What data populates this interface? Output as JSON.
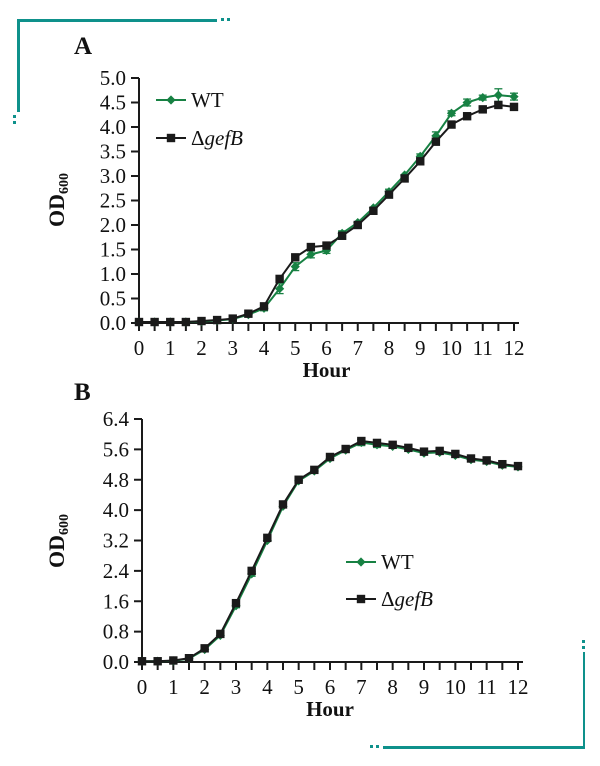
{
  "decorations": {
    "color": "#0e918b",
    "top_left_bracket": "corner bracket with dotted ends",
    "bottom_right_bracket": "corner bracket with dotted ends"
  },
  "chart_data": [
    {
      "type": "line",
      "panel_label": "A",
      "xlabel": "Hour",
      "ylabel": {
        "main": "OD",
        "sub": "600"
      },
      "xlim": [
        0,
        12
      ],
      "ylim": [
        0,
        5.0
      ],
      "x_minor_step": 0.5,
      "x_tick_labels": [
        "0",
        "1",
        "2",
        "3",
        "4",
        "5",
        "6",
        "7",
        "8",
        "9",
        "10",
        "11",
        "12"
      ],
      "y_ticks": [
        0,
        0.5,
        1.0,
        1.5,
        2.0,
        2.5,
        3.0,
        3.5,
        4.0,
        4.5,
        5.0
      ],
      "y_tick_labels": [
        "0.0",
        "0.5",
        "1.0",
        "1.5",
        "2.0",
        "2.5",
        "3.0",
        "3.5",
        "4.0",
        "4.5",
        "5.0"
      ],
      "grid": false,
      "legend_position": "inside-top-left",
      "x": [
        0,
        0.5,
        1,
        1.5,
        2,
        2.5,
        3,
        3.5,
        4,
        4.5,
        5,
        5.5,
        6,
        6.5,
        7,
        7.5,
        8,
        8.5,
        9,
        9.5,
        10,
        10.5,
        11,
        11.5,
        12
      ],
      "series": [
        {
          "name": "WT",
          "key": "wt",
          "color": "#178143",
          "marker": "diamond",
          "values": [
            0.02,
            0.02,
            0.02,
            0.02,
            0.03,
            0.05,
            0.08,
            0.17,
            0.3,
            0.7,
            1.15,
            1.4,
            1.48,
            1.83,
            2.05,
            2.35,
            2.68,
            3.02,
            3.4,
            3.82,
            4.28,
            4.5,
            4.6,
            4.65,
            4.62
          ],
          "err": [
            0,
            0,
            0,
            0,
            0,
            0,
            0,
            0.04,
            0.05,
            0.1,
            0.08,
            0.07,
            0.06,
            0.05,
            0,
            0,
            0.05,
            0,
            0.05,
            0.08,
            0.05,
            0.07,
            0.05,
            0.13,
            0.07
          ]
        },
        {
          "name": "ΔgefB",
          "key": "gefb-mutant",
          "color": "#1a1a1a",
          "marker": "square",
          "values": [
            0.02,
            0.02,
            0.02,
            0.02,
            0.04,
            0.06,
            0.09,
            0.19,
            0.34,
            0.9,
            1.34,
            1.55,
            1.58,
            1.78,
            2.0,
            2.29,
            2.62,
            2.95,
            3.3,
            3.7,
            4.05,
            4.22,
            4.36,
            4.45,
            4.41
          ],
          "err": [
            0,
            0,
            0,
            0,
            0,
            0,
            0,
            0,
            0,
            0,
            0,
            0,
            0,
            0,
            0,
            0,
            0,
            0,
            0,
            0,
            0,
            0,
            0.04,
            0.04,
            0.05
          ]
        }
      ],
      "legend": {
        "entries": [
          {
            "parts": [
              {
                "t": "WT",
                "italic": false
              }
            ]
          },
          {
            "parts": [
              {
                "t": "Δ",
                "italic": false
              },
              {
                "t": "gefB",
                "italic": true
              }
            ]
          }
        ]
      }
    },
    {
      "type": "line",
      "panel_label": "B",
      "xlabel": "Hour",
      "ylabel": {
        "main": "OD",
        "sub": "600"
      },
      "xlim": [
        0,
        12
      ],
      "ylim": [
        0,
        6.4
      ],
      "x_minor_step": 0.5,
      "x_tick_labels": [
        "0",
        "1",
        "2",
        "3",
        "4",
        "5",
        "6",
        "7",
        "8",
        "9",
        "10",
        "11",
        "12"
      ],
      "y_ticks": [
        0,
        0.8,
        1.6,
        2.4,
        3.2,
        4.0,
        4.8,
        5.6,
        6.4
      ],
      "y_tick_labels": [
        "0.0",
        "0.8",
        "1.6",
        "2.4",
        "3.2",
        "4.0",
        "4.8",
        "5.6",
        "6.4"
      ],
      "grid": false,
      "legend_position": "inside-right-middle",
      "x": [
        0,
        0.5,
        1,
        1.5,
        2,
        2.5,
        3,
        3.5,
        4,
        4.5,
        5,
        5.5,
        6,
        6.5,
        7,
        7.5,
        8,
        8.5,
        9,
        9.5,
        10,
        10.5,
        11,
        11.5,
        12
      ],
      "series": [
        {
          "name": "WT",
          "key": "wt",
          "color": "#178143",
          "marker": "diamond",
          "values": [
            0.02,
            0.02,
            0.03,
            0.09,
            0.33,
            0.7,
            1.48,
            2.32,
            3.2,
            4.1,
            4.77,
            5.03,
            5.36,
            5.58,
            5.78,
            5.72,
            5.68,
            5.6,
            5.5,
            5.52,
            5.44,
            5.33,
            5.28,
            5.18,
            5.14
          ],
          "err": [
            0,
            0,
            0,
            0,
            0,
            0,
            0.05,
            0.06,
            0,
            0,
            0,
            0,
            0,
            0.06,
            0.08,
            0.07,
            0,
            0,
            0,
            0.05,
            0,
            0.05,
            0,
            0.04,
            0
          ]
        },
        {
          "name": "ΔgefB",
          "key": "gefb-mutant",
          "color": "#1a1a1a",
          "marker": "square",
          "values": [
            0.02,
            0.02,
            0.04,
            0.1,
            0.36,
            0.74,
            1.55,
            2.4,
            3.27,
            4.15,
            4.8,
            5.06,
            5.4,
            5.61,
            5.82,
            5.77,
            5.72,
            5.64,
            5.54,
            5.56,
            5.48,
            5.36,
            5.31,
            5.21,
            5.16
          ],
          "err": [
            0,
            0,
            0,
            0,
            0,
            0,
            0,
            0,
            0,
            0,
            0,
            0,
            0,
            0,
            0.05,
            0,
            0,
            0,
            0,
            0,
            0,
            0,
            0,
            0,
            0
          ]
        }
      ],
      "legend": {
        "entries": [
          {
            "parts": [
              {
                "t": "WT",
                "italic": false
              }
            ]
          },
          {
            "parts": [
              {
                "t": "Δ",
                "italic": false
              },
              {
                "t": "gefB",
                "italic": true
              }
            ]
          }
        ]
      }
    }
  ]
}
